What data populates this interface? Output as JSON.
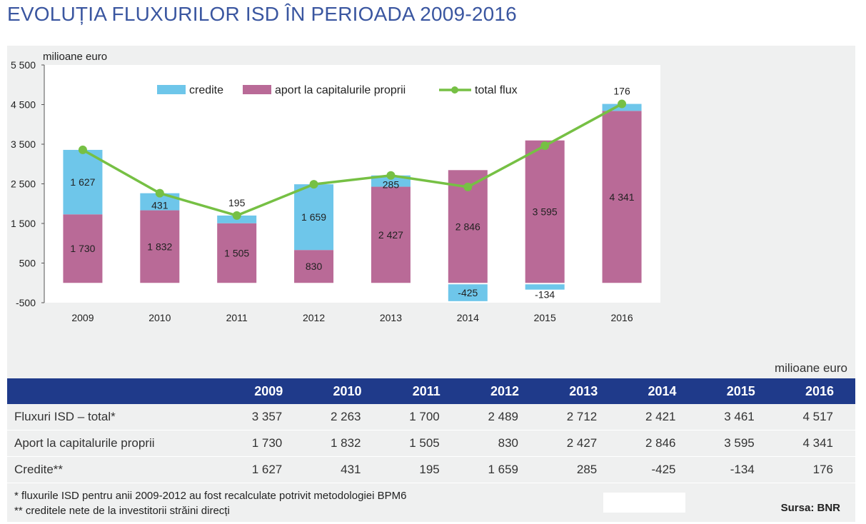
{
  "title": "EVOLUȚIA FLUXURILOR ISD ÎN PERIOADA 2009-2016",
  "chart_data": {
    "type": "bar",
    "stacked": true,
    "ylabel": "milioane euro",
    "ylim": [
      -500,
      5500
    ],
    "yticks": [
      -500,
      500,
      1500,
      2500,
      3500,
      4500,
      5500
    ],
    "ytick_labels": [
      "-500",
      "500",
      "1 500",
      "2 500",
      "3 500",
      "4 500",
      "5 500"
    ],
    "categories": [
      "2009",
      "2010",
      "2011",
      "2012",
      "2013",
      "2014",
      "2015",
      "2016"
    ],
    "legend_position": "top",
    "series": [
      {
        "name": "credite",
        "kind": "bar",
        "color": "#6ec6ea",
        "values": [
          1627,
          431,
          195,
          1659,
          285,
          -425,
          -134,
          176
        ],
        "labels": [
          "1 627",
          "431",
          "195",
          "1 659",
          "285",
          "-425",
          "-134",
          "176"
        ]
      },
      {
        "name": "aport la capitalurile proprii",
        "kind": "bar",
        "color": "#b96a97",
        "values": [
          1730,
          1832,
          1505,
          830,
          2427,
          2846,
          3595,
          4341
        ],
        "labels": [
          "1 730",
          "1 832",
          "1 505",
          "830",
          "2 427",
          "2 846",
          "3 595",
          "4 341"
        ]
      },
      {
        "name": "total flux",
        "kind": "line",
        "color": "#76c044",
        "values": [
          3357,
          2263,
          1700,
          2489,
          2712,
          2421,
          3461,
          4517
        ]
      }
    ]
  },
  "table": {
    "unit": "milioane euro",
    "years": [
      "2009",
      "2010",
      "2011",
      "2012",
      "2013",
      "2014",
      "2015",
      "2016"
    ],
    "rows": [
      {
        "label": "Fluxuri ISD – total*",
        "values": [
          "3 357",
          "2 263",
          "1 700",
          "2 489",
          "2 712",
          "2 421",
          "3 461",
          "4 517"
        ]
      },
      {
        "label": "Aport la capitalurile proprii",
        "values": [
          "1 730",
          "1 832",
          "1 505",
          "830",
          "2 427",
          "2 846",
          "3 595",
          "4 341"
        ]
      },
      {
        "label": "Credite**",
        "values": [
          "1 627",
          "431",
          "195",
          "1 659",
          "285",
          "-425",
          "-134",
          "176"
        ]
      }
    ]
  },
  "notes": [
    "* fluxurile ISD pentru anii 2009-2012 au fost recalculate potrivit metodologiei BPM6",
    "** creditele nete de la investitorii străini direcți"
  ],
  "source": "Sursa: BNR"
}
